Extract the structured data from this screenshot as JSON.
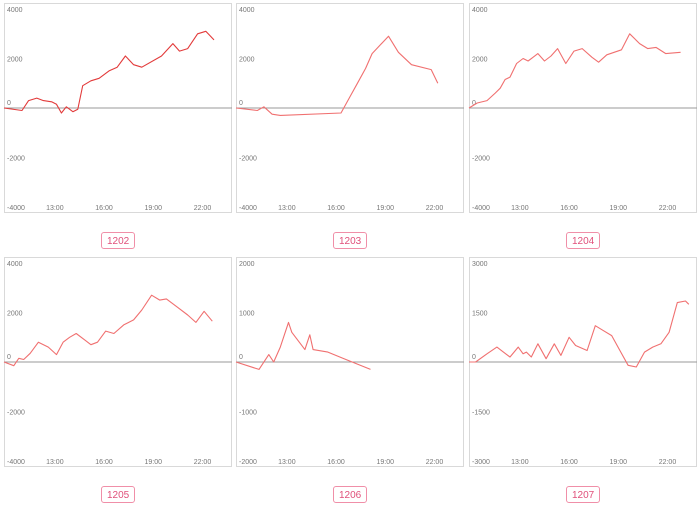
{
  "chart_data": [
    {
      "type": "line",
      "label": "1202",
      "color": "#e23a3a",
      "ylim": [
        -4000,
        4000
      ],
      "yticks": [
        4000,
        2000,
        0,
        -2000,
        -4000
      ],
      "xlim": [
        9.9,
        23.8
      ],
      "xticks": [
        13,
        16,
        19,
        22
      ],
      "xtick_labels": [
        "13:00",
        "16:00",
        "19:00",
        "22:00"
      ],
      "x": [
        9.9,
        11.0,
        11.4,
        11.9,
        12.3,
        12.8,
        13.1,
        13.4,
        13.7,
        14.1,
        14.4,
        14.7,
        15.2,
        15.7,
        16.3,
        16.8,
        17.3,
        17.8,
        18.3,
        19.5,
        20.2,
        20.6,
        21.1,
        21.7,
        22.2,
        22.7
      ],
      "y": [
        0,
        -100,
        300,
        400,
        300,
        250,
        150,
        -200,
        50,
        -150,
        -50,
        900,
        1100,
        1200,
        1500,
        1650,
        2100,
        1750,
        1650,
        2100,
        2600,
        2300,
        2400,
        3000,
        3100,
        2750
      ]
    },
    {
      "type": "line",
      "label": "1203",
      "color": "#f07070",
      "ylim": [
        -4000,
        4000
      ],
      "yticks": [
        4000,
        2000,
        0,
        -2000,
        -4000
      ],
      "xlim": [
        9.9,
        23.8
      ],
      "xticks": [
        13,
        16,
        19,
        22
      ],
      "xtick_labels": [
        "13:00",
        "16:00",
        "19:00",
        "22:00"
      ],
      "x": [
        9.9,
        11.2,
        11.6,
        12.1,
        12.6,
        16.3,
        16.8,
        17.3,
        17.8,
        18.2,
        18.7,
        19.2,
        19.8,
        20.6,
        21.8,
        22.2
      ],
      "y": [
        0,
        -100,
        50,
        -250,
        -300,
        -200,
        400,
        1000,
        1600,
        2200,
        2550,
        2900,
        2250,
        1750,
        1550,
        1000
      ]
    },
    {
      "type": "line",
      "label": "1204",
      "color": "#f07070",
      "ylim": [
        -4000,
        4000
      ],
      "yticks": [
        4000,
        2000,
        0,
        -2000,
        -4000
      ],
      "xlim": [
        9.9,
        23.8
      ],
      "xticks": [
        13,
        16,
        19,
        22
      ],
      "xtick_labels": [
        "13:00",
        "16:00",
        "19:00",
        "22:00"
      ],
      "x": [
        9.9,
        10.4,
        11.0,
        11.5,
        11.8,
        12.1,
        12.4,
        12.8,
        13.2,
        13.5,
        13.8,
        14.1,
        14.5,
        14.9,
        15.3,
        15.8,
        16.3,
        16.8,
        17.4,
        17.8,
        18.3,
        19.2,
        19.7,
        20.3,
        20.8,
        21.3,
        21.9,
        22.8
      ],
      "y": [
        0,
        200,
        300,
        600,
        800,
        1150,
        1250,
        1800,
        2000,
        1900,
        2050,
        2200,
        1900,
        2100,
        2400,
        1800,
        2300,
        2400,
        2050,
        1850,
        2150,
        2350,
        3000,
        2600,
        2400,
        2450,
        2200,
        2250
      ]
    },
    {
      "type": "line",
      "label": "1205",
      "color": "#f07070",
      "ylim": [
        -4000,
        4000
      ],
      "yticks": [
        4000,
        2000,
        0,
        -2000,
        -4000
      ],
      "xlim": [
        9.9,
        23.8
      ],
      "xticks": [
        13,
        16,
        19,
        22
      ],
      "xtick_labels": [
        "13:00",
        "16:00",
        "19:00",
        "22:00"
      ],
      "x": [
        9.9,
        10.5,
        10.8,
        11.1,
        11.5,
        12.0,
        12.6,
        13.1,
        13.5,
        13.9,
        14.3,
        14.8,
        15.2,
        15.6,
        16.1,
        16.6,
        17.2,
        17.8,
        18.3,
        18.9,
        19.4,
        19.8,
        20.5,
        21.1,
        21.6,
        22.1,
        22.6
      ],
      "y": [
        0,
        -150,
        150,
        100,
        350,
        800,
        600,
        300,
        800,
        1000,
        1150,
        900,
        700,
        800,
        1250,
        1150,
        1500,
        1700,
        2100,
        2700,
        2500,
        2550,
        2200,
        1900,
        1600,
        2050,
        1650
      ]
    },
    {
      "type": "line",
      "label": "1206",
      "color": "#f07070",
      "ylim": [
        -2000,
        2000
      ],
      "yticks": [
        2000,
        1000,
        0,
        -1000,
        -2000
      ],
      "xlim": [
        9.9,
        23.8
      ],
      "xticks": [
        13,
        16,
        19,
        22
      ],
      "xtick_labels": [
        "13:00",
        "16:00",
        "19:00",
        "22:00"
      ],
      "x": [
        9.9,
        11.3,
        11.9,
        12.2,
        12.6,
        13.1,
        13.3,
        14.1,
        14.4,
        14.6,
        15.5,
        16.6,
        18.1
      ],
      "y": [
        0,
        -150,
        150,
        0,
        300,
        800,
        600,
        250,
        550,
        250,
        200,
        50,
        -150
      ]
    },
    {
      "type": "line",
      "label": "1207",
      "color": "#f07070",
      "ylim": [
        -3000,
        3000
      ],
      "yticks": [
        3000,
        1500,
        0,
        -1500,
        -3000
      ],
      "xlim": [
        9.9,
        23.8
      ],
      "xticks": [
        13,
        16,
        19,
        22
      ],
      "xtick_labels": [
        "13:00",
        "16:00",
        "19:00",
        "22:00"
      ],
      "x": [
        9.9,
        10.3,
        11.0,
        11.6,
        12.0,
        12.4,
        12.9,
        13.2,
        13.4,
        13.7,
        14.1,
        14.6,
        15.1,
        15.5,
        16.0,
        16.4,
        17.1,
        17.6,
        18.1,
        18.6,
        19.1,
        19.6,
        20.1,
        20.6,
        21.1,
        21.6,
        22.1,
        22.6,
        23.1,
        23.3
      ],
      "y": [
        0,
        0,
        250,
        450,
        300,
        150,
        450,
        250,
        300,
        150,
        550,
        100,
        550,
        200,
        750,
        500,
        350,
        1100,
        950,
        800,
        350,
        -100,
        -150,
        300,
        450,
        550,
        900,
        1800,
        1850,
        1750
      ]
    }
  ]
}
